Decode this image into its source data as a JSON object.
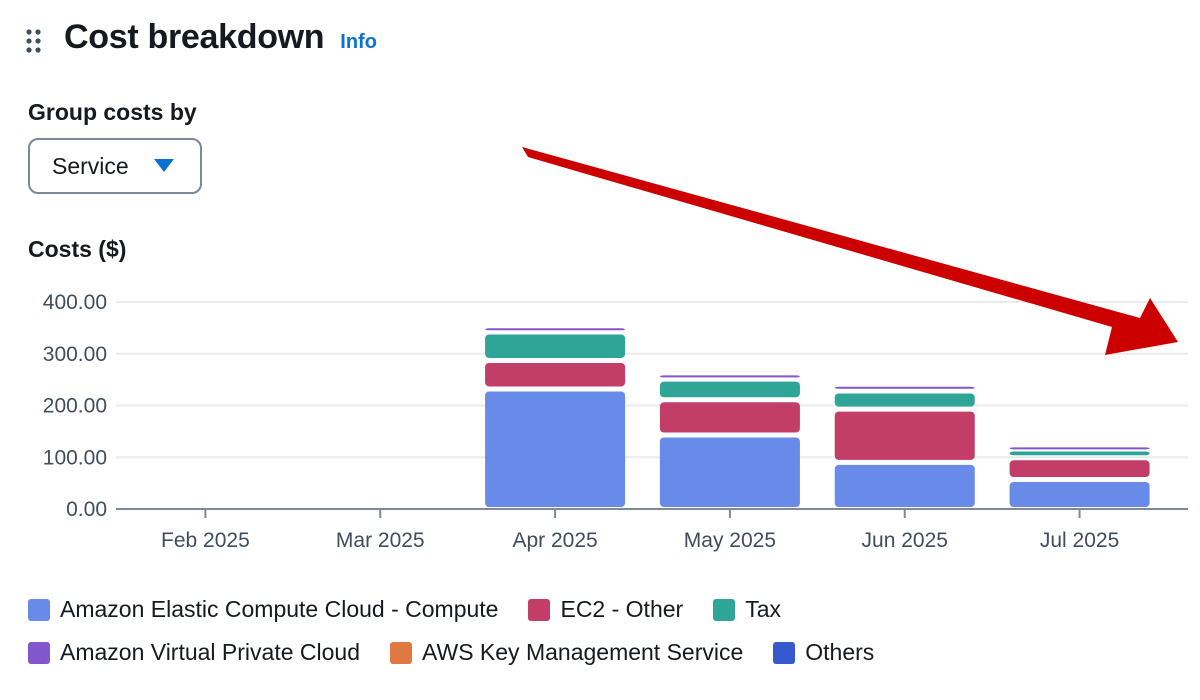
{
  "header": {
    "title": "Cost breakdown",
    "info_label": "Info",
    "drag_icon": "drag-handle-icon"
  },
  "group_by": {
    "label": "Group costs by",
    "selected": "Service",
    "caret_icon": "caret-down-icon",
    "caret_color": "#0972d3"
  },
  "costs_label": "Costs ($)",
  "chart_data": {
    "type": "bar",
    "stacked": true,
    "categories": [
      "Feb 2025",
      "Mar 2025",
      "Apr 2025",
      "May 2025",
      "Jun 2025",
      "Jul 2025"
    ],
    "series": [
      {
        "name": "Amazon Elastic Compute Cloud - Compute",
        "color": "#688ae8",
        "values": [
          0,
          0,
          232,
          143,
          90,
          57
        ]
      },
      {
        "name": "EC2 - Other",
        "color": "#c33d69",
        "values": [
          0,
          0,
          55,
          68,
          103,
          42
        ]
      },
      {
        "name": "Tax",
        "color": "#2ea597",
        "values": [
          0,
          0,
          55,
          40,
          35,
          17
        ]
      },
      {
        "name": "Amazon Virtual Private Cloud",
        "color": "#8456ce",
        "values": [
          0,
          0,
          12,
          12,
          13,
          8
        ]
      },
      {
        "name": "AWS Key Management Service",
        "color": "#e07941",
        "values": [
          0,
          0,
          0,
          0,
          0,
          0
        ]
      },
      {
        "name": "Others",
        "color": "#3759ce",
        "values": [
          0,
          0,
          0,
          0,
          0,
          0
        ]
      }
    ],
    "yticks": [
      "0.00",
      "100.00",
      "200.00",
      "300.00",
      "400.00"
    ],
    "ylim": [
      0,
      400
    ],
    "grid": true,
    "legend_position": "bottom"
  },
  "annotation": {
    "arrow_color": "#cc0000"
  }
}
